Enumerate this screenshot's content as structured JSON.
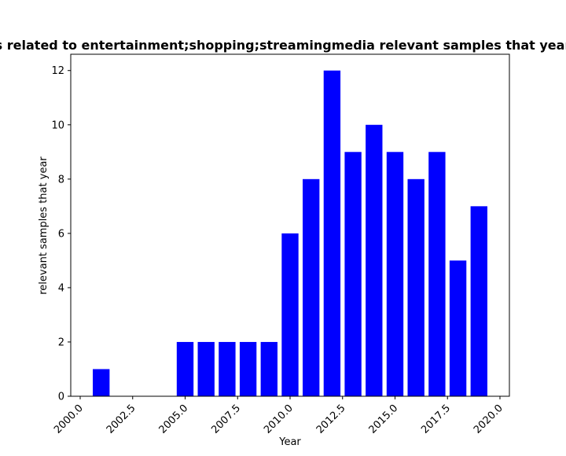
{
  "chart_data": {
    "type": "bar",
    "title": "Articles related to entertainment;shopping;streamingmedia relevant samples that year in chart",
    "xlabel": "Year",
    "ylabel": "relevant samples that year",
    "x": [
      2001,
      2005,
      2006,
      2007,
      2008,
      2009,
      2010,
      2011,
      2012,
      2013,
      2014,
      2015,
      2016,
      2017,
      2018,
      2019
    ],
    "values": [
      1,
      2,
      2,
      2,
      2,
      2,
      6,
      8,
      12,
      9,
      10,
      9,
      8,
      9,
      5,
      7
    ],
    "bar_width_years": 0.8,
    "xlim": [
      1999.55,
      2020.45
    ],
    "ylim": [
      0,
      12.6
    ],
    "xticks": [
      "2000.0",
      "2002.5",
      "2005.0",
      "2007.5",
      "2010.0",
      "2012.5",
      "2015.0",
      "2017.5",
      "2020.0"
    ],
    "yticks": [
      "0",
      "2",
      "4",
      "6",
      "8",
      "10",
      "12"
    ],
    "bar_color": "#0000ff",
    "grid": false,
    "legend": "none"
  }
}
